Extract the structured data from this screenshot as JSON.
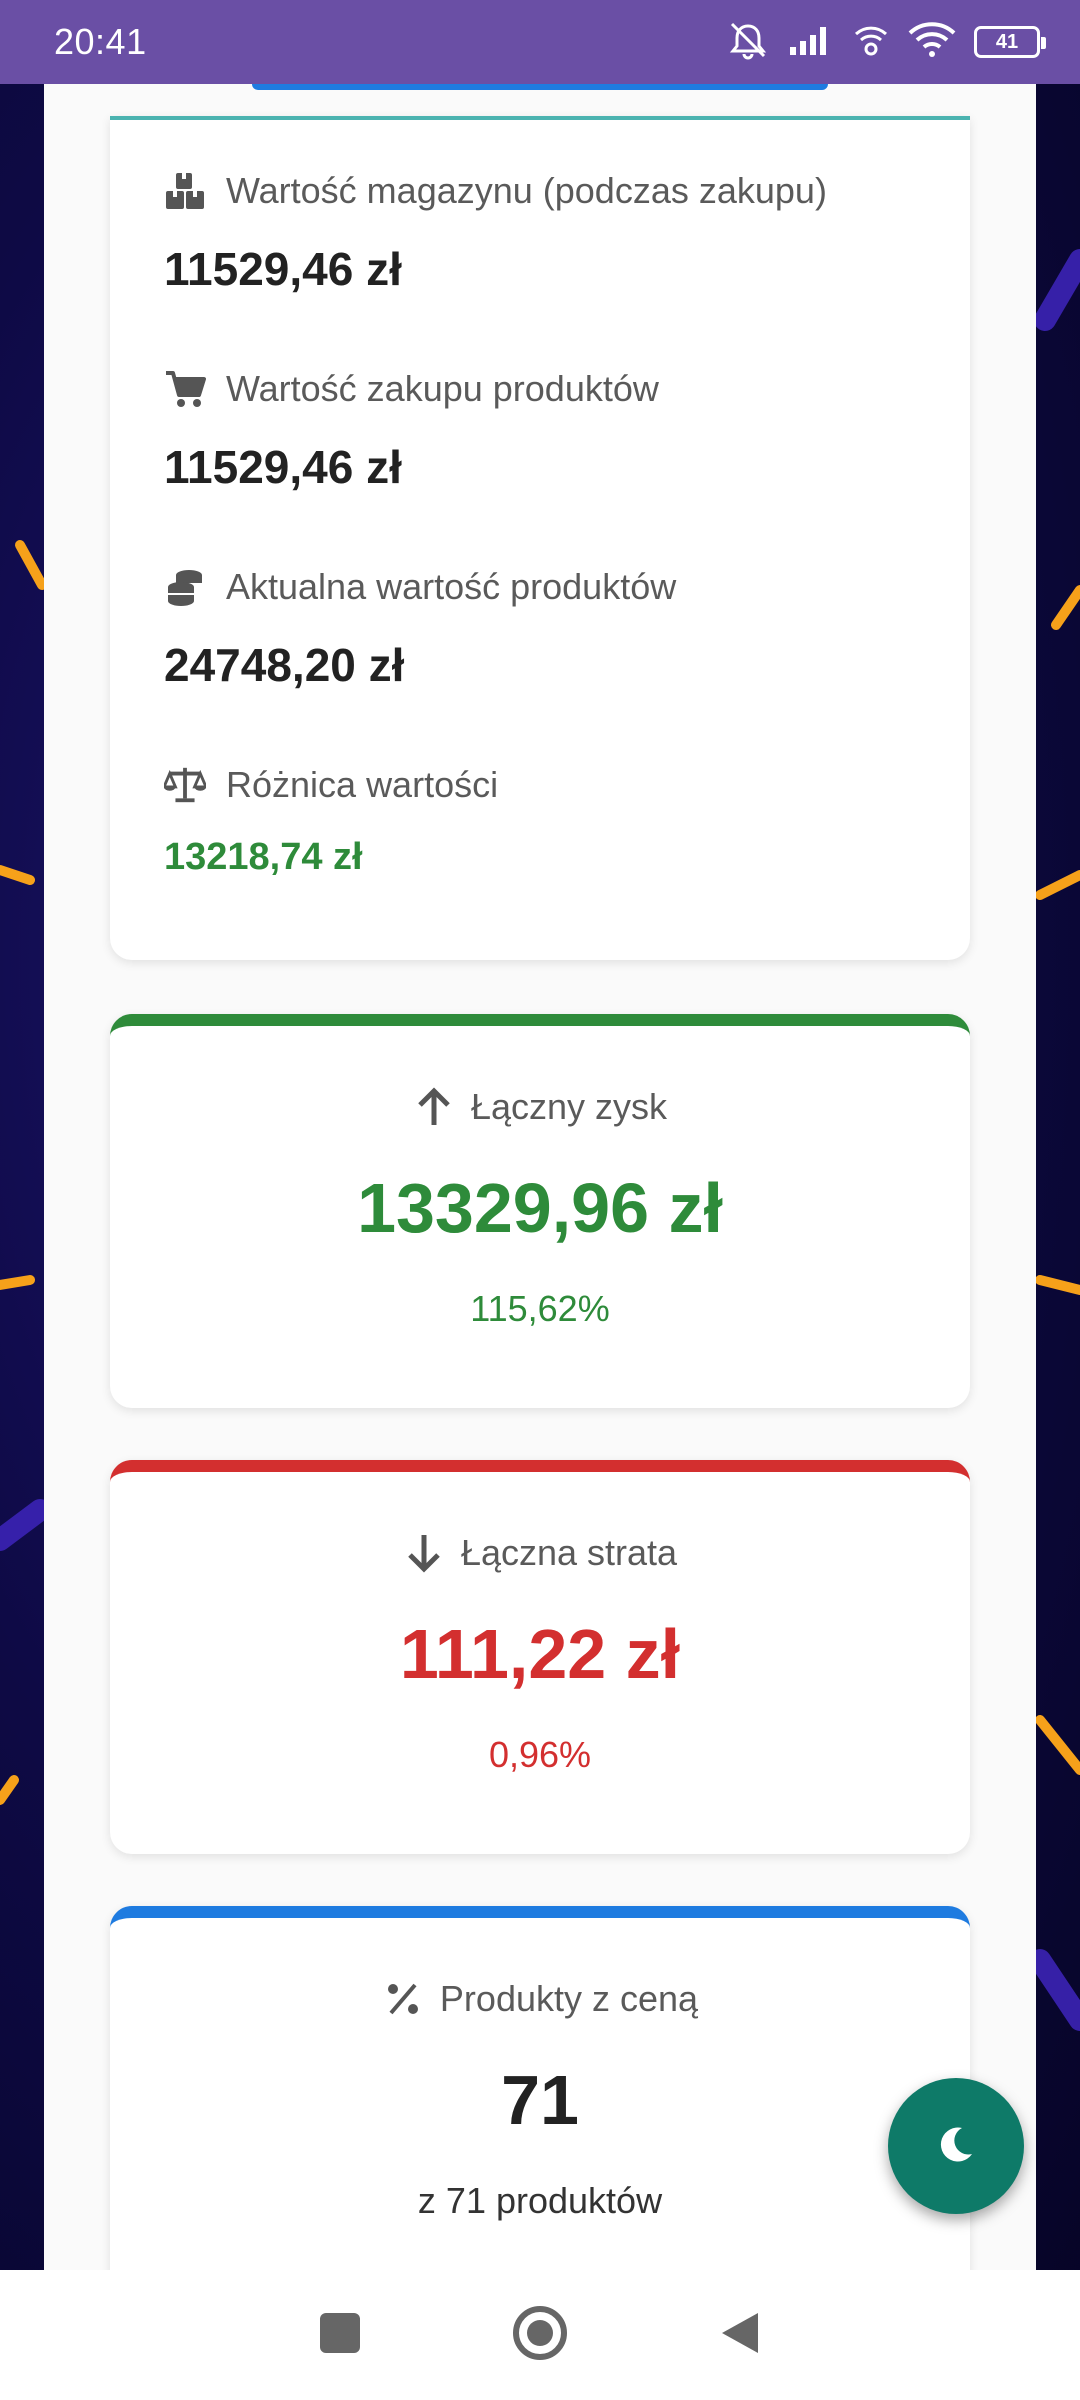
{
  "status_bar": {
    "time": "20:41",
    "battery": "41",
    "icons": [
      "silent-mode-icon",
      "signal-icon",
      "wifi-calling-icon",
      "wifi-icon",
      "battery-icon"
    ]
  },
  "summary": {
    "rows": [
      {
        "icon": "boxes-icon",
        "label": "Wartość magazynu (podczas zakupu)",
        "value": "11529,46 zł"
      },
      {
        "icon": "cart-icon",
        "label": "Wartość zakupu produktów",
        "value": "11529,46 zł"
      },
      {
        "icon": "coins-icon",
        "label": "Aktualna wartość produktów",
        "value": "24748,20 zł"
      },
      {
        "icon": "balance-scale-icon",
        "label": "Różnica wartości",
        "value": "13218,74 zł"
      }
    ]
  },
  "profit": {
    "icon": "arrow-up-icon",
    "label": "Łączny zysk",
    "value": "13329,96 zł",
    "percent": "115,62%",
    "color": "#2e8b3a"
  },
  "loss": {
    "icon": "arrow-down-icon",
    "label": "Łączna strata",
    "value": "111,22 zł",
    "percent": "0,96%",
    "color": "#d32f2f"
  },
  "priced": {
    "icon": "percent-icon",
    "label": "Produkty z ceną",
    "value": "71",
    "sub": "z 71 produktów",
    "color": "#1e7be0"
  },
  "fab": {
    "icon": "moon-icon"
  },
  "nav": {
    "icons": [
      "recents-square-icon",
      "home-circle-icon",
      "back-triangle-icon"
    ]
  }
}
